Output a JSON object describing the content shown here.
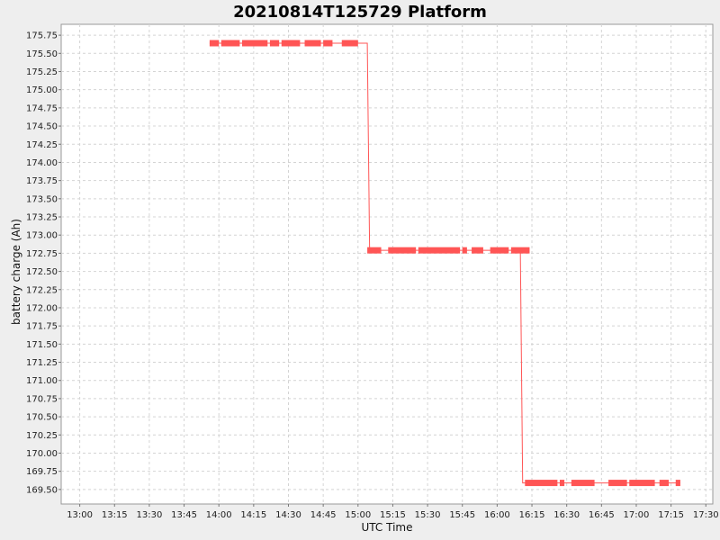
{
  "chart_data": {
    "type": "line",
    "title": "20210814T125729 Platform",
    "xlabel": "UTC Time",
    "ylabel": "battery charge (Ah)",
    "x_ticks": [
      "13:00",
      "13:15",
      "13:30",
      "13:45",
      "14:00",
      "14:15",
      "14:30",
      "14:45",
      "15:00",
      "15:15",
      "15:30",
      "15:45",
      "16:00",
      "16:15",
      "16:30",
      "16:45",
      "17:00",
      "17:15",
      "17:30"
    ],
    "y_ticks": [
      "175.75",
      "175.50",
      "175.25",
      "175.00",
      "174.75",
      "174.50",
      "174.25",
      "174.00",
      "173.75",
      "173.50",
      "173.25",
      "173.00",
      "172.75",
      "172.50",
      "172.25",
      "172.00",
      "171.75",
      "171.50",
      "171.25",
      "171.00",
      "170.75",
      "170.50",
      "170.25",
      "170.00",
      "169.75",
      "169.50"
    ],
    "xlim": [
      "12:52",
      "17:33"
    ],
    "ylim": [
      169.3,
      175.9
    ],
    "grid": true,
    "color": "#ff5555",
    "series": [
      {
        "points": [
          [
            "13:56",
            175.64
          ],
          [
            "14:00",
            175.64
          ],
          [
            "14:04",
            175.64
          ],
          [
            "14:08",
            175.64
          ],
          [
            "14:12",
            175.64
          ],
          [
            "14:16",
            175.64
          ],
          [
            "14:20",
            175.64
          ],
          [
            "14:24",
            175.64
          ],
          [
            "14:28",
            175.64
          ],
          [
            "14:32",
            175.64
          ],
          [
            "14:36",
            175.64
          ],
          [
            "14:40",
            175.64
          ],
          [
            "14:44",
            175.64
          ],
          [
            "14:48",
            175.64
          ],
          [
            "14:52",
            175.64
          ],
          [
            "14:58",
            175.64
          ],
          [
            "15:04",
            175.64
          ],
          [
            "15:05",
            172.79
          ],
          [
            "15:08",
            172.79
          ],
          [
            "15:12",
            172.79
          ],
          [
            "15:16",
            172.79
          ],
          [
            "15:20",
            172.79
          ],
          [
            "15:24",
            172.79
          ],
          [
            "15:28",
            172.79
          ],
          [
            "15:32",
            172.79
          ],
          [
            "15:36",
            172.79
          ],
          [
            "15:40",
            172.79
          ],
          [
            "15:44",
            172.79
          ],
          [
            "15:48",
            172.79
          ],
          [
            "15:53",
            172.79
          ],
          [
            "15:57",
            172.79
          ],
          [
            "16:02",
            172.79
          ],
          [
            "16:07",
            172.79
          ],
          [
            "16:10",
            172.79
          ],
          [
            "16:11",
            169.59
          ],
          [
            "16:15",
            169.59
          ],
          [
            "16:19",
            169.59
          ],
          [
            "16:23",
            169.59
          ],
          [
            "16:27",
            169.59
          ],
          [
            "16:32",
            169.59
          ],
          [
            "16:36",
            169.59
          ],
          [
            "16:40",
            169.59
          ],
          [
            "16:46",
            169.59
          ],
          [
            "16:50",
            169.59
          ],
          [
            "16:55",
            169.59
          ],
          [
            "17:00",
            169.59
          ],
          [
            "17:04",
            169.59
          ],
          [
            "17:08",
            169.59
          ],
          [
            "17:13",
            169.59
          ],
          [
            "17:19",
            169.59
          ]
        ],
        "dense_segments": [
          {
            "x": [
              "13:56",
              "14:00"
            ],
            "y": 175.64
          },
          {
            "x": [
              "14:01",
              "14:09"
            ],
            "y": 175.64
          },
          {
            "x": [
              "14:10",
              "14:21"
            ],
            "y": 175.64
          },
          {
            "x": [
              "14:22",
              "14:26"
            ],
            "y": 175.64
          },
          {
            "x": [
              "14:27",
              "14:35"
            ],
            "y": 175.64
          },
          {
            "x": [
              "14:37",
              "14:44"
            ],
            "y": 175.64
          },
          {
            "x": [
              "14:45",
              "14:49"
            ],
            "y": 175.64
          },
          {
            "x": [
              "14:53",
              "15:00"
            ],
            "y": 175.64
          },
          {
            "x": [
              "15:04",
              "15:10"
            ],
            "y": 172.79
          },
          {
            "x": [
              "15:13",
              "15:25"
            ],
            "y": 172.79
          },
          {
            "x": [
              "15:26",
              "15:44"
            ],
            "y": 172.79
          },
          {
            "x": [
              "15:45",
              "15:47"
            ],
            "y": 172.79
          },
          {
            "x": [
              "15:49",
              "15:54"
            ],
            "y": 172.79
          },
          {
            "x": [
              "15:57",
              "16:05"
            ],
            "y": 172.79
          },
          {
            "x": [
              "16:06",
              "16:14"
            ],
            "y": 172.79
          },
          {
            "x": [
              "16:12",
              "16:26"
            ],
            "y": 169.59
          },
          {
            "x": [
              "16:27",
              "16:29"
            ],
            "y": 169.59
          },
          {
            "x": [
              "16:32",
              "16:42"
            ],
            "y": 169.59
          },
          {
            "x": [
              "16:48",
              "16:56"
            ],
            "y": 169.59
          },
          {
            "x": [
              "16:57",
              "17:08"
            ],
            "y": 169.59
          },
          {
            "x": [
              "17:10",
              "17:14"
            ],
            "y": 169.59
          },
          {
            "x": [
              "17:17",
              "17:19"
            ],
            "y": 169.59
          }
        ]
      }
    ]
  }
}
